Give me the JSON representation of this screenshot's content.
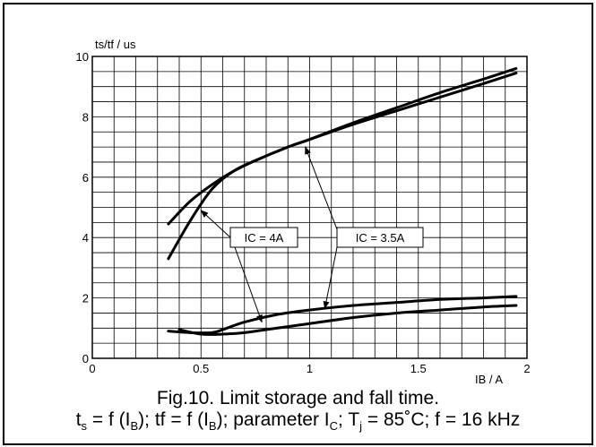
{
  "chart_data": {
    "type": "line",
    "ylabel": "ts/tf / us",
    "xlabel": "IB / A",
    "xlim": [
      0,
      2
    ],
    "ylim": [
      0,
      10
    ],
    "x_ticks": [
      "0",
      "0.5",
      "1",
      "1.5",
      "2"
    ],
    "y_ticks": [
      "0",
      "2",
      "4",
      "6",
      "8",
      "10"
    ],
    "grid": true,
    "series": [
      {
        "name": "ts, IC = 4A",
        "x": [
          0.35,
          0.45,
          0.55,
          0.65,
          0.75,
          0.9,
          1.0,
          1.2,
          1.4,
          1.6,
          1.8,
          1.95
        ],
        "y": [
          4.45,
          5.2,
          5.75,
          6.2,
          6.55,
          7.0,
          7.25,
          7.8,
          8.3,
          8.8,
          9.25,
          9.6
        ]
      },
      {
        "name": "ts, IC = 3.5A",
        "x": [
          0.35,
          0.45,
          0.55,
          0.65,
          0.75,
          0.9,
          1.0,
          1.2,
          1.4,
          1.6,
          1.8,
          1.95
        ],
        "y": [
          3.3,
          4.55,
          5.6,
          6.2,
          6.55,
          7.0,
          7.25,
          7.75,
          8.2,
          8.65,
          9.1,
          9.45
        ]
      },
      {
        "name": "tf, IC = 4A",
        "x": [
          0.35,
          0.45,
          0.55,
          0.6,
          0.7,
          0.85,
          1.0,
          1.2,
          1.4,
          1.6,
          1.8,
          1.95
        ],
        "y": [
          0.9,
          0.85,
          0.85,
          0.95,
          1.2,
          1.45,
          1.6,
          1.75,
          1.85,
          1.95,
          2.0,
          2.05
        ]
      },
      {
        "name": "tf, IC = 3.5A",
        "x": [
          0.4,
          0.5,
          0.6,
          0.7,
          0.8,
          0.9,
          1.0,
          1.2,
          1.4,
          1.6,
          1.8,
          1.95
        ],
        "y": [
          0.95,
          0.8,
          0.8,
          0.85,
          0.95,
          1.05,
          1.15,
          1.35,
          1.5,
          1.6,
          1.7,
          1.75
        ]
      }
    ],
    "annotations": [
      {
        "text": "IC = 4A"
      },
      {
        "text": "IC = 3.5A"
      }
    ]
  },
  "caption": {
    "title": "Fig.10.   Limit storage and fall time.",
    "formula_parts": [
      {
        "text": "t"
      },
      {
        "sub": "s"
      },
      {
        "text": " = f (I"
      },
      {
        "sub": "B"
      },
      {
        "text": "); tf = f (I"
      },
      {
        "sub": "B"
      },
      {
        "text": "); parameter I"
      },
      {
        "sub": "C"
      },
      {
        "text": "; T"
      },
      {
        "sub": "j"
      },
      {
        "text": " = 85˚C; f = 16 kHz"
      }
    ]
  }
}
